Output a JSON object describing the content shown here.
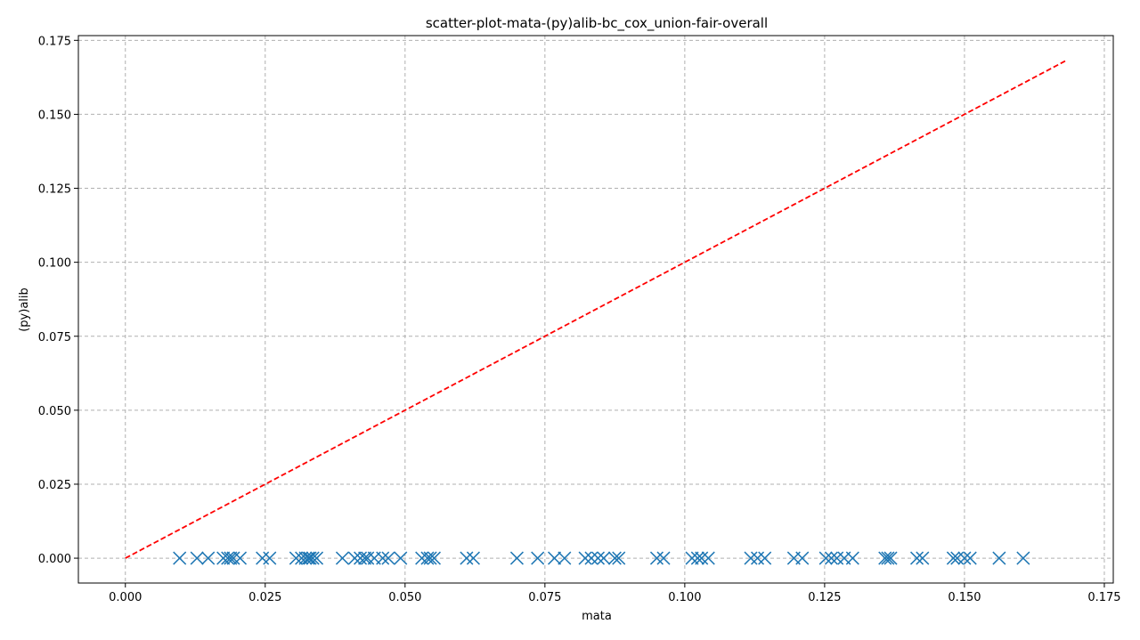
{
  "chart_data": {
    "type": "scatter",
    "title": "scatter-plot-mata-(py)alib-bc_cox_union-fair-overall",
    "xlabel": "mata",
    "ylabel": "(py)alib",
    "xlim": [
      -0.0084,
      0.1766
    ],
    "ylim": [
      -0.0084,
      0.1766
    ],
    "xticks": [
      "0.000",
      "0.025",
      "0.050",
      "0.075",
      "0.100",
      "0.125",
      "0.150",
      "0.175"
    ],
    "yticks": [
      "0.000",
      "0.025",
      "0.050",
      "0.075",
      "0.100",
      "0.125",
      "0.150",
      "0.175"
    ],
    "grid": true,
    "marker_color": "#1f77b4",
    "reference_line_color": "#ff0000",
    "reference_line": {
      "x": [
        0.0,
        0.168
      ],
      "y": [
        0.0,
        0.168
      ],
      "style": "dashed"
    },
    "series": [
      {
        "marker": "x",
        "x": [
          0.0097,
          0.0128,
          0.0148,
          0.0175,
          0.0183,
          0.0188,
          0.0193,
          0.0205,
          0.0245,
          0.0258,
          0.0305,
          0.0315,
          0.0322,
          0.0327,
          0.033,
          0.0335,
          0.0342,
          0.0388,
          0.041,
          0.042,
          0.0428,
          0.0433,
          0.0445,
          0.046,
          0.047,
          0.0492,
          0.053,
          0.054,
          0.0545,
          0.0552,
          0.061,
          0.0622,
          0.07,
          0.0737,
          0.0767,
          0.0785,
          0.0822,
          0.0833,
          0.0845,
          0.0855,
          0.0875,
          0.0882,
          0.095,
          0.0962,
          0.1013,
          0.1023,
          0.103,
          0.1042,
          0.1118,
          0.113,
          0.1143,
          0.1195,
          0.121,
          0.1252,
          0.1262,
          0.1272,
          0.1285,
          0.13,
          0.1358,
          0.1363,
          0.1368,
          0.1415,
          0.1425,
          0.148,
          0.1487,
          0.15,
          0.151,
          0.1562,
          0.1605
        ],
        "y": [
          0,
          0,
          0,
          0,
          0,
          0,
          0,
          0,
          0,
          0,
          0,
          0,
          0,
          0,
          0,
          0,
          0,
          0,
          0,
          0,
          0,
          0,
          0,
          0,
          0,
          0,
          0,
          0,
          0,
          0,
          0,
          0,
          0,
          0,
          0,
          0,
          0,
          0,
          0,
          0,
          0,
          0,
          0,
          0,
          0,
          0,
          0,
          0,
          0,
          0,
          0,
          0,
          0,
          0,
          0,
          0,
          0,
          0,
          0,
          0,
          0,
          0,
          0,
          0,
          0,
          0,
          0,
          0,
          0
        ]
      }
    ]
  }
}
